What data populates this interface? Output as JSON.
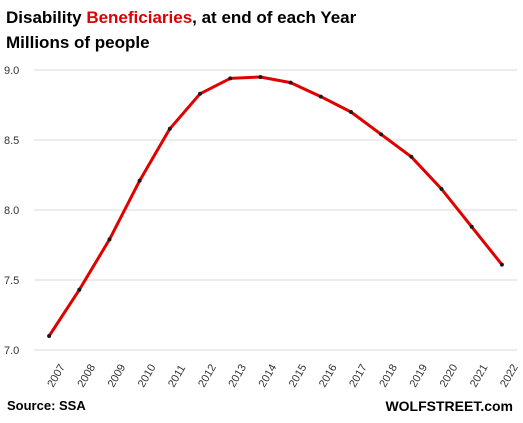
{
  "title_prefix": "Disability ",
  "title_highlight": "Beneficiaries",
  "title_suffix": ", at end of each Year",
  "subtitle": "Millions  of people",
  "source": "Source: SSA",
  "brand": "WOLFSTREET.com",
  "colors": {
    "line": "#e00000",
    "highlight": "#e00000",
    "grid": "#d9d9d9",
    "marker": "#1a1a1a"
  },
  "chart_data": {
    "type": "line",
    "title": "Disability Beneficiaries, at end of each Year",
    "subtitle": "Millions  of people",
    "x": [
      "2007",
      "2008",
      "2009",
      "2010",
      "2011",
      "2012",
      "2013",
      "2014",
      "2015",
      "2016",
      "2017",
      "2018",
      "2019",
      "2020",
      "2021",
      "2022"
    ],
    "series": [
      {
        "values": [
          7.1,
          7.43,
          7.79,
          8.21,
          8.58,
          8.83,
          8.94,
          8.95,
          8.91,
          8.81,
          8.7,
          8.54,
          8.38,
          8.15,
          7.88,
          7.61
        ]
      }
    ],
    "ylim": [
      7.0,
      9.0
    ],
    "yticks": [
      "7.0",
      "7.5",
      "8.0",
      "8.5",
      "9.0"
    ],
    "grid": true,
    "legend": "none"
  }
}
